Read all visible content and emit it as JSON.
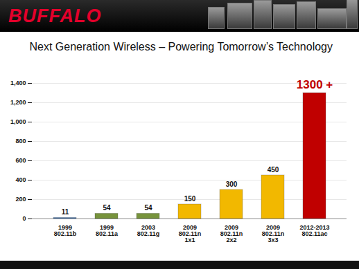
{
  "logo": "BUFFALO",
  "chart_data": {
    "type": "bar",
    "title": "Next Generation Wireless – Powering Tomorrow’s Technology",
    "categories": [
      "1999\n802.11b",
      "1999\n802.11a",
      "2003\n802.11g",
      "2009\n802.11n\n1x1",
      "2009\n802.11n\n2x2",
      "2009\n802.11n\n3x3",
      "2012-2013\n802.11ac"
    ],
    "values": [
      11,
      54,
      54,
      150,
      300,
      450,
      1300
    ],
    "value_labels": [
      "11",
      "54",
      "54",
      "150",
      "300",
      "450",
      "1300 +"
    ],
    "colors": [
      "#4f81bd",
      "#77933c",
      "#77933c",
      "#f2b800",
      "#f2b800",
      "#f2b800",
      "#c00000"
    ],
    "ylim": [
      0,
      1400
    ],
    "yticks": [
      0,
      200,
      400,
      600,
      800,
      1000,
      1200,
      1400
    ],
    "grid": true,
    "data_labels": true
  }
}
